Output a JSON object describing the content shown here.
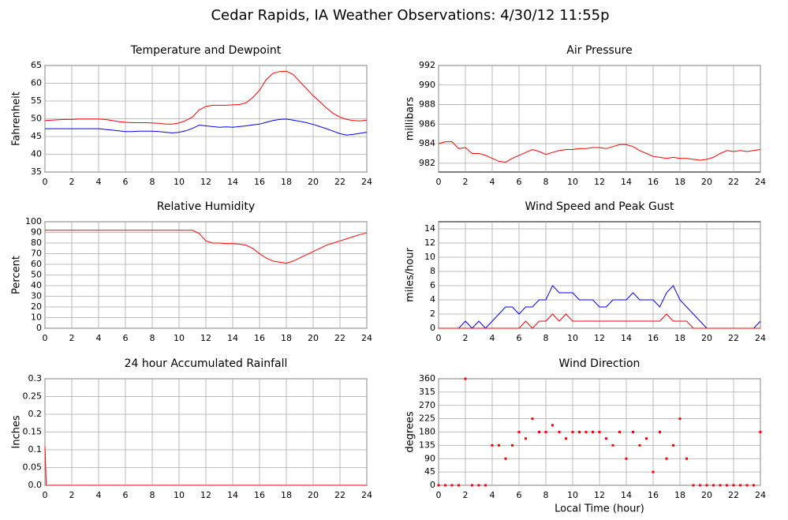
{
  "title": "Cedar Rapids, IA Weather Observations: 4/30/12 11:55p",
  "chart_data": [
    {
      "type": "line",
      "title": "Temperature and Dewpoint",
      "ylabel": "Fahrenheit",
      "x": [
        0,
        0.5,
        1,
        1.5,
        2,
        2.5,
        3,
        3.5,
        4,
        4.5,
        5,
        5.5,
        6,
        6.5,
        7,
        7.5,
        8,
        8.5,
        9,
        9.5,
        10,
        10.5,
        11,
        11.5,
        12,
        12.5,
        13,
        13.5,
        14,
        14.5,
        15,
        15.5,
        16,
        16.5,
        17,
        17.5,
        18,
        18.5,
        19,
        19.5,
        20,
        20.5,
        21,
        21.5,
        22,
        22.5,
        23,
        23.5,
        24
      ],
      "series": [
        {
          "color": "#ff0000",
          "values": [
            49.5,
            49.6,
            49.7,
            49.8,
            49.8,
            49.9,
            49.9,
            49.9,
            49.9,
            49.8,
            49.5,
            49.2,
            49.0,
            48.9,
            48.9,
            48.9,
            48.8,
            48.7,
            48.5,
            48.5,
            48.8,
            49.5,
            50.5,
            52.5,
            53.5,
            53.8,
            53.8,
            53.8,
            53.9,
            54.0,
            54.5,
            56,
            58,
            61,
            62.8,
            63.3,
            63.4,
            62.5,
            60.5,
            58.5,
            56.5,
            54.8,
            53.0,
            51.5,
            50.5,
            49.8,
            49.5,
            49.4,
            49.6
          ]
        },
        {
          "color": "#0000ff",
          "values": [
            47.2,
            47.2,
            47.2,
            47.2,
            47.2,
            47.2,
            47.2,
            47.2,
            47.2,
            47.0,
            46.8,
            46.6,
            46.4,
            46.4,
            46.5,
            46.5,
            46.5,
            46.4,
            46.2,
            46.0,
            46.2,
            46.6,
            47.3,
            48.2,
            48.0,
            47.8,
            47.6,
            47.7,
            47.6,
            47.8,
            48.0,
            48.3,
            48.5,
            49.0,
            49.5,
            49.8,
            49.9,
            49.6,
            49.3,
            48.9,
            48.4,
            47.8,
            47.2,
            46.5,
            45.8,
            45.4,
            45.6,
            45.9,
            46.2
          ]
        }
      ],
      "xlim": [
        0,
        24
      ],
      "xticks": [
        0,
        2,
        4,
        6,
        8,
        10,
        12,
        14,
        16,
        18,
        20,
        22,
        24
      ],
      "ylim": [
        35,
        65
      ],
      "yticks": [
        35,
        40,
        45,
        50,
        55,
        60,
        65
      ],
      "grid": true
    },
    {
      "type": "line",
      "title": "Air Pressure",
      "ylabel": "millibars",
      "x": [
        0,
        0.5,
        1,
        1.5,
        2,
        2.5,
        3,
        3.5,
        4,
        4.5,
        5,
        5.5,
        6,
        6.5,
        7,
        7.5,
        8,
        8.5,
        9,
        9.5,
        10,
        10.5,
        11,
        11.5,
        12,
        12.5,
        13,
        13.5,
        14,
        14.5,
        15,
        15.5,
        16,
        16.5,
        17,
        17.5,
        18,
        18.5,
        19,
        19.5,
        20,
        20.5,
        21,
        21.5,
        22,
        22.5,
        23,
        23.5,
        24
      ],
      "series": [
        {
          "color": "#ff0000",
          "values": [
            984.0,
            984.2,
            984.2,
            983.5,
            983.6,
            983.0,
            983.0,
            982.8,
            982.5,
            982.2,
            982.1,
            982.5,
            982.8,
            983.1,
            983.4,
            983.2,
            982.9,
            983.1,
            983.3,
            983.4,
            983.4,
            983.5,
            983.5,
            983.6,
            983.6,
            983.5,
            983.7,
            983.9,
            983.9,
            983.7,
            983.3,
            983.0,
            982.7,
            982.6,
            982.5,
            982.6,
            982.5,
            982.5,
            982.4,
            982.3,
            982.4,
            982.6,
            983.0,
            983.3,
            983.2,
            983.3,
            983.2,
            983.3,
            983.4
          ]
        }
      ],
      "xlim": [
        0,
        24
      ],
      "xticks": [
        0,
        2,
        4,
        6,
        8,
        10,
        12,
        14,
        16,
        18,
        20,
        22,
        24
      ],
      "ylim": [
        981.1,
        992
      ],
      "yticks": [
        982,
        984,
        986,
        988,
        990,
        992
      ],
      "grid": true
    },
    {
      "type": "line",
      "title": "Relative Humidity",
      "ylabel": "Percent",
      "x": [
        0,
        0.5,
        1,
        1.5,
        2,
        2.5,
        3,
        3.5,
        4,
        4.5,
        5,
        5.5,
        6,
        6.5,
        7,
        7.5,
        8,
        8.5,
        9,
        9.5,
        10,
        10.5,
        11,
        11.5,
        12,
        12.5,
        13,
        13.5,
        14,
        14.5,
        15,
        15.5,
        16,
        16.5,
        17,
        17.5,
        18,
        18.5,
        19,
        19.5,
        20,
        20.5,
        21,
        21.5,
        22,
        22.5,
        23,
        23.5,
        24
      ],
      "series": [
        {
          "color": "#ff0000",
          "values": [
            92,
            92,
            92,
            92,
            92,
            92,
            92,
            92,
            92,
            92,
            92,
            92,
            92,
            92,
            92,
            92,
            92,
            92,
            92,
            92,
            92,
            92,
            92,
            89,
            82,
            80,
            80,
            79.5,
            79.5,
            79,
            78,
            75,
            70,
            66,
            63,
            62,
            61,
            63,
            66,
            69,
            72,
            75,
            78,
            80,
            82,
            84,
            86,
            88,
            89.5
          ]
        }
      ],
      "xlim": [
        0,
        24
      ],
      "xticks": [
        0,
        2,
        4,
        6,
        8,
        10,
        12,
        14,
        16,
        18,
        20,
        22,
        24
      ],
      "ylim": [
        0,
        100
      ],
      "yticks": [
        0,
        10,
        20,
        30,
        40,
        50,
        60,
        70,
        80,
        90,
        100
      ],
      "grid": true
    },
    {
      "type": "line",
      "title": "Wind Speed and Peak Gust",
      "ylabel": "miles/hour",
      "x": [
        0,
        0.5,
        1,
        1.5,
        2,
        2.5,
        3,
        3.5,
        4,
        4.5,
        5,
        5.5,
        6,
        6.5,
        7,
        7.5,
        8,
        8.5,
        9,
        9.5,
        10,
        10.5,
        11,
        11.5,
        12,
        12.5,
        13,
        13.5,
        14,
        14.5,
        15,
        15.5,
        16,
        16.5,
        17,
        17.5,
        18,
        18.5,
        19,
        19.5,
        20,
        20.5,
        21,
        21.5,
        22,
        22.5,
        23,
        23.5,
        24
      ],
      "series": [
        {
          "color": "#0000ff",
          "values": [
            0,
            0,
            0,
            0,
            1,
            0,
            1,
            0,
            1,
            2,
            3,
            3,
            2,
            3,
            3,
            4,
            4,
            6,
            5,
            5,
            5,
            4,
            4,
            4,
            3,
            3,
            4,
            4,
            4,
            5,
            4,
            4,
            4,
            3,
            5,
            6,
            4,
            3,
            2,
            1,
            0,
            0,
            0,
            0,
            0,
            0,
            0,
            0,
            1
          ]
        },
        {
          "color": "#ff0000",
          "values": [
            0,
            0,
            0,
            0,
            0,
            0,
            0,
            0,
            0,
            0,
            0,
            0,
            0,
            1,
            0,
            1,
            1,
            2,
            1,
            2,
            1,
            1,
            1,
            1,
            1,
            1,
            1,
            1,
            1,
            1,
            1,
            1,
            1,
            1,
            2,
            1,
            1,
            1,
            0,
            0,
            0,
            0,
            0,
            0,
            0,
            0,
            0,
            0,
            0
          ]
        }
      ],
      "xlim": [
        0,
        24
      ],
      "xticks": [
        0,
        2,
        4,
        6,
        8,
        10,
        12,
        14,
        16,
        18,
        20,
        22,
        24
      ],
      "ylim": [
        0,
        15
      ],
      "yticks": [
        0,
        2,
        4,
        6,
        8,
        10,
        12,
        14
      ],
      "grid": true
    },
    {
      "type": "line",
      "title": "24 hour Accumulated Rainfall",
      "ylabel": "Inches",
      "x": [
        0,
        0.1,
        0.5,
        1,
        2,
        4,
        6,
        8,
        10,
        12,
        14,
        16,
        18,
        20,
        22,
        24
      ],
      "series": [
        {
          "color": "#ff0000",
          "values": [
            0.11,
            0,
            0,
            0,
            0,
            0,
            0,
            0,
            0,
            0,
            0,
            0,
            0,
            0,
            0,
            0
          ]
        }
      ],
      "xlim": [
        0,
        24
      ],
      "xticks": [
        0,
        2,
        4,
        6,
        8,
        10,
        12,
        14,
        16,
        18,
        20,
        22,
        24
      ],
      "ylim": [
        0,
        0.3
      ],
      "yticks": [
        {
          "value": 0,
          "label": "0.0"
        },
        0.05,
        0.1,
        0.15,
        0.2,
        0.25,
        0.3
      ],
      "grid": true
    },
    {
      "type": "scatter",
      "title": "Wind Direction",
      "ylabel": "degrees",
      "xlabel": "Local Time (hour)",
      "x": [
        0,
        0.5,
        1,
        1.5,
        2,
        2.5,
        3,
        3.5,
        4,
        4.5,
        5,
        5.5,
        6,
        6.5,
        7,
        7.5,
        8,
        8.5,
        9,
        9.5,
        10,
        10.5,
        11,
        11.5,
        12,
        12.5,
        13,
        13.5,
        14,
        14.5,
        15,
        15.5,
        16,
        16.5,
        17,
        17.5,
        18,
        18.5,
        19,
        19.5,
        20,
        20.5,
        21,
        21.5,
        22,
        22.5,
        23,
        23.5,
        24
      ],
      "color": "#ff0000",
      "values": [
        0,
        0,
        0,
        0,
        360,
        0,
        0,
        0,
        135,
        135,
        90,
        135,
        180,
        158,
        225,
        180,
        180,
        203,
        180,
        158,
        180,
        180,
        180,
        180,
        180,
        158,
        135,
        180,
        90,
        180,
        135,
        158,
        45,
        180,
        90,
        135,
        225,
        90,
        0,
        0,
        0,
        0,
        0,
        0,
        0,
        0,
        0,
        0,
        180
      ],
      "xlim": [
        0,
        24
      ],
      "xticks": [
        0,
        2,
        4,
        6,
        8,
        10,
        12,
        14,
        16,
        18,
        20,
        22,
        24
      ],
      "ylim": [
        0,
        360
      ],
      "yticks": [
        0,
        45,
        90,
        135,
        180,
        225,
        270,
        315,
        360
      ],
      "grid": true
    }
  ]
}
